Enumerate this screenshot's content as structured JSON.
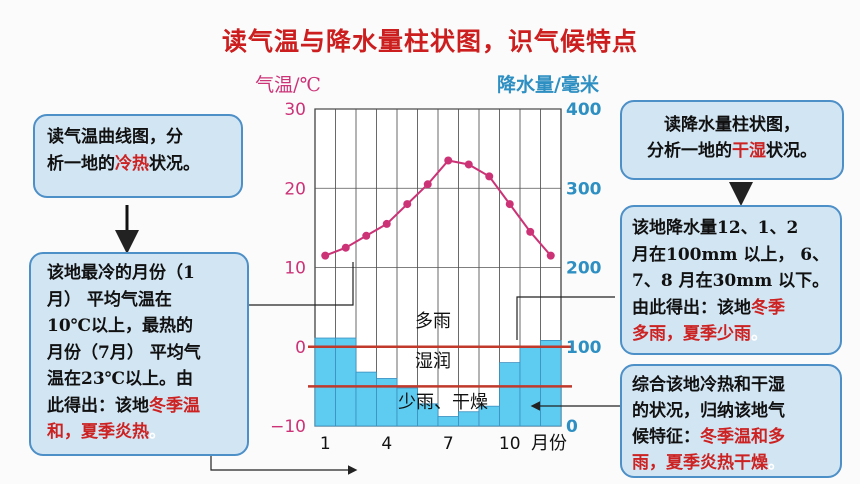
{
  "title": "读气温与降水量柱状图，识气候特点",
  "colors": {
    "temp": "#cc3377",
    "precip": "#2e8fc2",
    "bar": "#5ecbf0",
    "red": "#cc2222"
  },
  "chart_data": {
    "type": "bar+line",
    "categories": [
      "1",
      "2",
      "3",
      "4",
      "5",
      "6",
      "7",
      "8",
      "9",
      "10",
      "11",
      "12"
    ],
    "xlabel": "月份",
    "x_tick_labels": [
      "1",
      "4",
      "7",
      "10"
    ],
    "y_left": {
      "label": "气温/℃",
      "ylim": [
        -10,
        30
      ],
      "ticks": [
        "30",
        "20",
        "10",
        "0",
        "−10"
      ]
    },
    "y_right": {
      "label": "降水量/毫米",
      "ylim": [
        0,
        400
      ],
      "ticks": [
        "400",
        "300",
        "200",
        "100",
        "0"
      ]
    },
    "series": [
      {
        "kind": "line",
        "values": [
          11.5,
          12.5,
          14,
          15.5,
          18,
          20.5,
          23.5,
          23,
          21.5,
          18,
          14.5,
          11.5
        ]
      },
      {
        "kind": "bar",
        "values": [
          111,
          111,
          68,
          60,
          48,
          28,
          12,
          18,
          25,
          80,
          100,
          108
        ]
      }
    ],
    "reference_lines": [
      {
        "value": 100,
        "axis": "right",
        "label": "湿润"
      },
      {
        "value": 50,
        "axis": "right"
      }
    ],
    "zone_labels": [
      "多雨",
      "湿润",
      "少雨、干燥"
    ]
  },
  "boxes": {
    "temp_read": {
      "l1": "读气温曲线图，分",
      "l2_a": "析一地的",
      "l2_hl": "冷热",
      "l2_b": "状况。"
    },
    "temp_result": {
      "l1": "该地最冷的月份（1",
      "l2": "月） 平均气温在",
      "l3": "10℃以上，最热的",
      "l4": "月份（7月） 平均气",
      "l5": "温在23℃以上。由",
      "l6_a": "此得出：该地",
      "l6_hl": "冬季温",
      "l7_hl": "和，夏季炎热",
      "l7_end": "。"
    },
    "precip_read": {
      "l1": "读降水量柱状图，",
      "l2_a": "分析一地的",
      "l2_hl": "干湿",
      "l2_b": "状况。"
    },
    "precip_result": {
      "l1": "该地降水量12、1、2",
      "l2": "月在100mm 以上， 6、",
      "l3": "7、8 月在30mm 以下。",
      "l4_a": "由此得出：该地",
      "l4_hl": "冬季",
      "l5_hl": "多雨，夏季少雨",
      "l5_end": "。"
    },
    "summary": {
      "l1": "综合该地冷热和干湿",
      "l2": "的状况，归纳该地气",
      "l3_a": "候特征：",
      "l3_hl": "冬季温和多",
      "l4_hl": "雨，夏季炎热干燥",
      "l4_end": "。"
    }
  }
}
